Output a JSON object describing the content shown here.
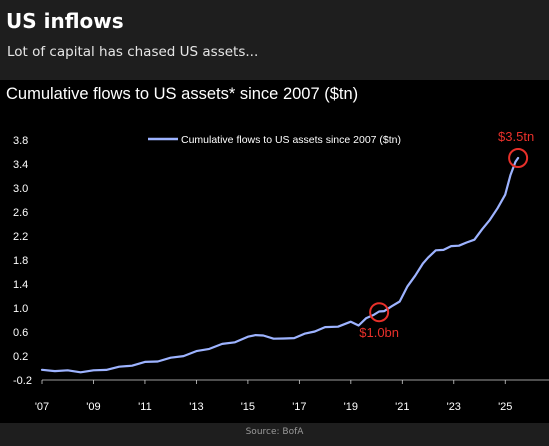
{
  "header": {
    "title": "US inflows",
    "subtitle": "Lot of capital has chased US assets..."
  },
  "footer": {
    "source": "Source: BofA"
  },
  "colors": {
    "page_background": "#1e1e1e",
    "chart_background": "#000000",
    "line": "#9db3ff",
    "highlight": "#e8302a",
    "text": "#ffffff"
  },
  "chart_data": {
    "type": "line",
    "title": "Cumulative flows to US assets* since 2007 ($tn)",
    "xlabel": "",
    "ylabel": "",
    "x_ticks": [
      "'07",
      "'09",
      "'11",
      "'13",
      "'15",
      "'17",
      "'19",
      "'21",
      "'23",
      "'25"
    ],
    "y_ticks": [
      "-0.2",
      "0.2",
      "0.6",
      "1.0",
      "1.4",
      "1.8",
      "2.2",
      "2.6",
      "3.0",
      "3.4",
      "3.8"
    ],
    "xlim": [
      2007,
      2026.7
    ],
    "ylim": [
      -0.2,
      3.9
    ],
    "grid": false,
    "legend_position": "top-center",
    "series": [
      {
        "name": "Cumulative flows to US assets since 2007 ($tn)",
        "x": [
          2007.0,
          2007.5,
          2008.0,
          2008.5,
          2009.0,
          2009.5,
          2010.0,
          2010.5,
          2011.0,
          2011.5,
          2012.0,
          2012.5,
          2013.0,
          2013.5,
          2014.0,
          2014.5,
          2015.0,
          2015.3,
          2015.6,
          2016.0,
          2016.4,
          2016.8,
          2017.2,
          2017.6,
          2018.0,
          2018.5,
          2019.0,
          2019.3,
          2019.6,
          2019.9,
          2020.1,
          2020.3,
          2020.6,
          2020.9,
          2021.2,
          2021.5,
          2021.8,
          2022.0,
          2022.3,
          2022.6,
          2022.9,
          2023.2,
          2023.5,
          2023.8,
          2024.1,
          2024.4,
          2024.7,
          2025.0,
          2025.2,
          2025.4,
          2025.5
        ],
        "y": [
          -0.03,
          -0.04,
          -0.05,
          -0.06,
          -0.05,
          -0.02,
          0.01,
          0.05,
          0.09,
          0.12,
          0.16,
          0.21,
          0.27,
          0.33,
          0.39,
          0.44,
          0.51,
          0.56,
          0.53,
          0.5,
          0.48,
          0.51,
          0.56,
          0.62,
          0.67,
          0.7,
          0.76,
          0.72,
          0.82,
          0.9,
          0.93,
          0.96,
          1.02,
          1.12,
          1.35,
          1.55,
          1.73,
          1.85,
          1.95,
          1.98,
          2.02,
          2.05,
          2.08,
          2.15,
          2.3,
          2.48,
          2.65,
          2.9,
          3.2,
          3.45,
          3.5
        ]
      }
    ],
    "annotations": [
      {
        "label": "$1.0bn",
        "x": 2020.1,
        "y": 0.93
      },
      {
        "label": "$3.5tn",
        "x": 2025.5,
        "y": 3.5
      }
    ]
  }
}
